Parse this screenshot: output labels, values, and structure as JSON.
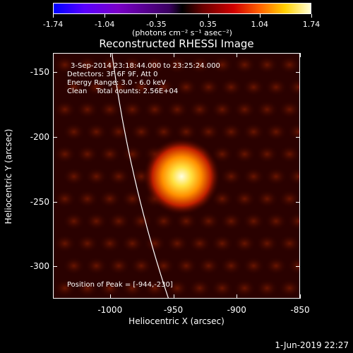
{
  "colorbar": {
    "ticks": [
      "-1.74",
      "-1.04",
      "-0.35",
      "0.35",
      "1.04",
      "1.74"
    ],
    "units": "(photons cm⁻² s⁻¹ asec⁻²)"
  },
  "title": "Reconstructed RHESSI Image",
  "info": {
    "time_range": "3-Sep-2014 23:18:44.000 to 23:25:24.000",
    "detectors": "Detectors: 3F 6F 9F, Att 0",
    "energy": "Energy Range: 3.0 - 6.0 keV",
    "clean": "Clean    Total counts: 2.56E+04",
    "peak": "Position of Peak = [-944,-230]"
  },
  "chart_data": {
    "type": "heatmap",
    "title": "Reconstructed RHESSI Image",
    "xlabel": "Heliocentric X (arcsec)",
    "ylabel": "Heliocentric Y (arcsec)",
    "xlim": [
      -1045,
      -850
    ],
    "ylim": [
      -325,
      -135
    ],
    "xticks": [
      "-1000",
      "-950",
      "-900",
      "-850"
    ],
    "yticks": [
      "-150",
      "-200",
      "-250",
      "-300"
    ],
    "peak": {
      "x": -944,
      "y": -230
    },
    "colorbar_range": [
      -1.74,
      1.74
    ],
    "limb_curve": true
  },
  "footer": {
    "date": "1-Jun-2019 22:27"
  }
}
